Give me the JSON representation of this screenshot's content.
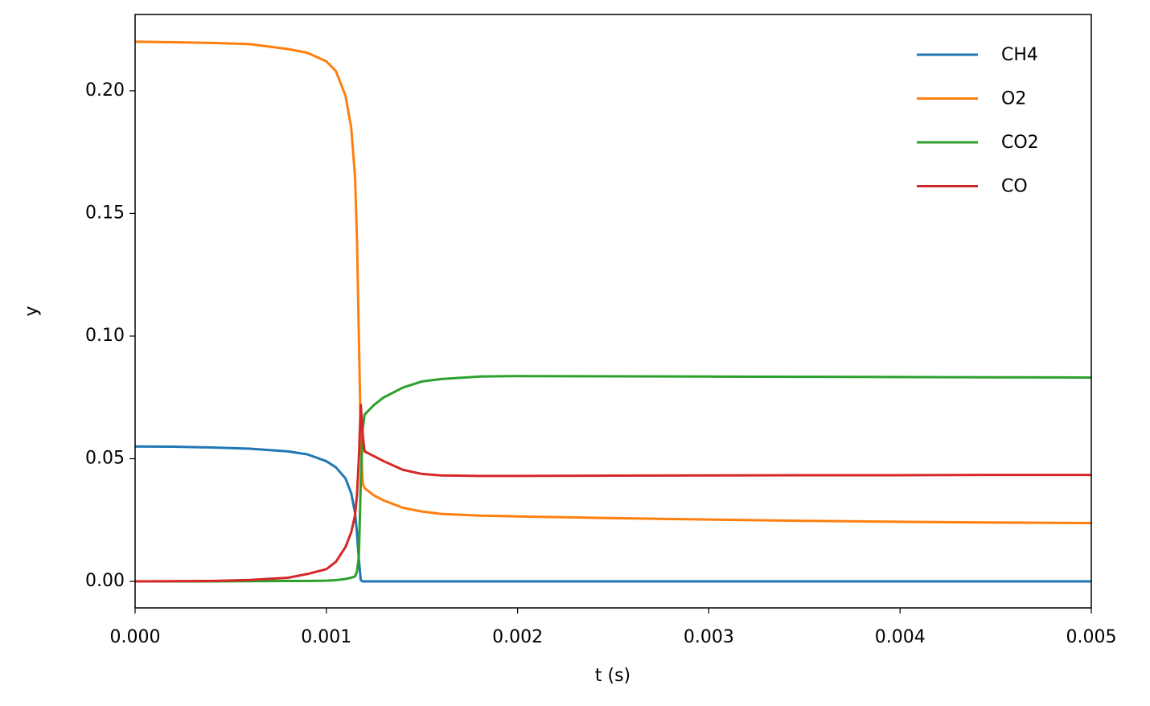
{
  "chart_data": {
    "type": "line",
    "x_label": "t (s)",
    "y_label": "y",
    "x": [
      0,
      0.0002,
      0.0004,
      0.0006,
      0.0008,
      0.0009,
      0.001,
      0.00105,
      0.0011,
      0.00113,
      0.00115,
      0.00116,
      0.00117,
      0.00118,
      0.00119,
      0.0012,
      0.00125,
      0.0013,
      0.0014,
      0.0015,
      0.0016,
      0.0018,
      0.002,
      0.0025,
      0.003,
      0.0035,
      0.004,
      0.0045,
      0.005
    ],
    "series": [
      {
        "name": "CH4",
        "color": "#1f77b4",
        "values": [
          0.055,
          0.0549,
          0.0546,
          0.0541,
          0.053,
          0.0518,
          0.049,
          0.0465,
          0.042,
          0.036,
          0.028,
          0.02,
          0.009,
          0.0005,
          0,
          0,
          0,
          0,
          0,
          0,
          0,
          0,
          0,
          0,
          0,
          0,
          0,
          0,
          0
        ]
      },
      {
        "name": "O2",
        "color": "#ff7f0e",
        "values": [
          0.22,
          0.2198,
          0.2195,
          0.219,
          0.217,
          0.2155,
          0.212,
          0.208,
          0.198,
          0.185,
          0.165,
          0.14,
          0.1,
          0.06,
          0.04,
          0.038,
          0.035,
          0.033,
          0.03,
          0.0285,
          0.0275,
          0.0268,
          0.0265,
          0.0258,
          0.0252,
          0.0247,
          0.0243,
          0.024,
          0.0238
        ]
      },
      {
        "name": "CO2",
        "color": "#2ca02c",
        "values": [
          0,
          0,
          0,
          0.0001,
          0.0002,
          0.0002,
          0.0003,
          0.0005,
          0.001,
          0.0015,
          0.002,
          0.004,
          0.01,
          0.04,
          0.062,
          0.068,
          0.072,
          0.075,
          0.079,
          0.0815,
          0.0825,
          0.0835,
          0.0837,
          0.0836,
          0.0835,
          0.0834,
          0.0833,
          0.0832,
          0.0831
        ]
      },
      {
        "name": "CO",
        "color": "#d62728",
        "values": [
          0,
          0.0001,
          0.0002,
          0.0006,
          0.0015,
          0.003,
          0.005,
          0.008,
          0.014,
          0.02,
          0.027,
          0.035,
          0.05,
          0.072,
          0.06,
          0.053,
          0.051,
          0.049,
          0.0455,
          0.0438,
          0.0432,
          0.043,
          0.043,
          0.0431,
          0.0432,
          0.0433,
          0.0433,
          0.0434,
          0.0434
        ]
      }
    ],
    "xlim": [
      0,
      0.005
    ],
    "xticks": [
      {
        "value": 0,
        "label": "0.000"
      },
      {
        "value": 0.001,
        "label": "0.001"
      },
      {
        "value": 0.002,
        "label": "0.002"
      },
      {
        "value": 0.003,
        "label": "0.003"
      },
      {
        "value": 0.004,
        "label": "0.004"
      },
      {
        "value": 0.005,
        "label": "0.005"
      }
    ],
    "ylim": [
      -0.0108,
      0.2311
    ],
    "yticks": [
      {
        "value": 0,
        "label": "0.00"
      },
      {
        "value": 0.05,
        "label": "0.05"
      },
      {
        "value": 0.1,
        "label": "0.10"
      },
      {
        "value": 0.15,
        "label": "0.15"
      },
      {
        "value": 0.2,
        "label": "0.20"
      }
    ],
    "legend": "upper right"
  }
}
